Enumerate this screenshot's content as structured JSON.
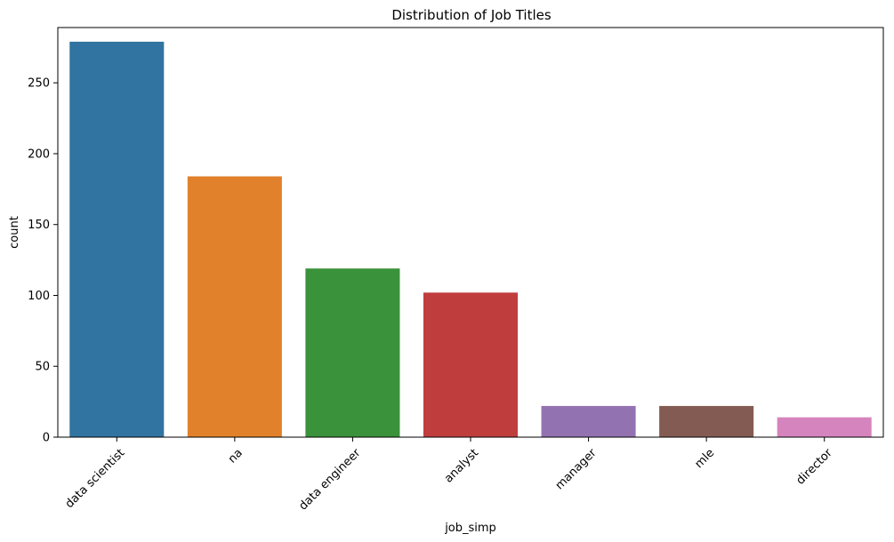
{
  "chart_data": {
    "type": "bar",
    "title": "Distribution of Job Titles",
    "xlabel": "job_simp",
    "ylabel": "count",
    "categories": [
      "data scientist",
      "na",
      "data engineer",
      "analyst",
      "manager",
      "mle",
      "director"
    ],
    "values": [
      279,
      184,
      119,
      102,
      22,
      22,
      14
    ],
    "colors": [
      "#3274a1",
      "#e1812c",
      "#3a923a",
      "#c03d3e",
      "#9372b2",
      "#845b53",
      "#d684bd"
    ],
    "ylim": [
      0,
      289
    ],
    "yticks": [
      0,
      50,
      100,
      150,
      200,
      250
    ],
    "grid": false,
    "legend": "none"
  }
}
